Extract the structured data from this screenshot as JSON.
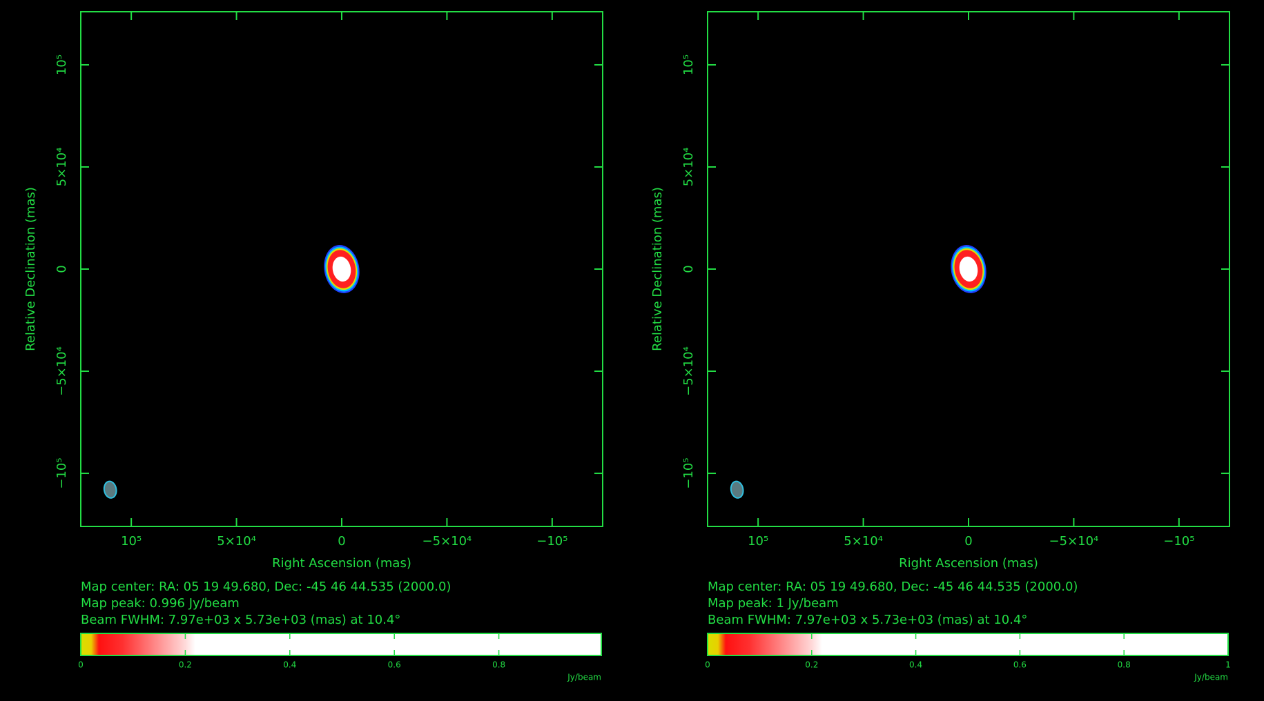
{
  "chart_data": [
    {
      "type": "image",
      "xlabel": "Right Ascension  (mas)",
      "ylabel": "Relative Declination  (mas)",
      "xlim": [
        124000,
        -124000
      ],
      "ylim": [
        -126000,
        126000
      ],
      "xticks": [
        {
          "value": 100000,
          "label": "10⁵"
        },
        {
          "value": 50000,
          "label": "5×10⁴"
        },
        0,
        {
          "value": -50000,
          "label": "−5×10⁴"
        },
        {
          "value": -100000,
          "label": "−10⁵"
        }
      ],
      "yticks": [
        {
          "value": 100000,
          "label": "10⁵"
        },
        {
          "value": 50000,
          "label": "5×10⁴"
        },
        0,
        {
          "value": -50000,
          "label": "−5×10⁴"
        },
        {
          "value": -100000,
          "label": "−10⁵"
        }
      ],
      "info": [
        "Map center:  RA: 05 19 49.680,  Dec: -45 46 44.535 (2000.0)",
        "Map peak: 0.996 Jy/beam",
        "Beam FWHM: 7.97e+03 x 5.73e+03 (mas) at 10.4°"
      ],
      "colorbar": {
        "lim": [
          0,
          0.996
        ],
        "ticks": [
          0,
          0.2,
          0.4,
          0.6,
          0.8
        ],
        "unit": "Jy/beam"
      },
      "source": {
        "x": 0,
        "y": 0,
        "peak": 0.996
      },
      "beam": {
        "x": 110000,
        "y": -108000,
        "major": 7970,
        "minor": 5730,
        "pa": 10.4
      }
    },
    {
      "type": "image",
      "xlabel": "Right Ascension  (mas)",
      "ylabel": "Relative Declination  (mas)",
      "xlim": [
        124000,
        -124000
      ],
      "ylim": [
        -126000,
        126000
      ],
      "xticks": [
        {
          "value": 100000,
          "label": "10⁵"
        },
        {
          "value": 50000,
          "label": "5×10⁴"
        },
        0,
        {
          "value": -50000,
          "label": "−5×10⁴"
        },
        {
          "value": -100000,
          "label": "−10⁵"
        }
      ],
      "yticks": [
        {
          "value": 100000,
          "label": "10⁵"
        },
        {
          "value": 50000,
          "label": "5×10⁴"
        },
        0,
        {
          "value": -50000,
          "label": "−5×10⁴"
        },
        {
          "value": -100000,
          "label": "−10⁵"
        }
      ],
      "info": [
        "Map center:  RA: 05 19 49.680,  Dec: -45 46 44.535 (2000.0)",
        "Map peak: 1 Jy/beam",
        "Beam FWHM: 7.97e+03 x 5.73e+03 (mas) at 10.4°"
      ],
      "colorbar": {
        "lim": [
          0,
          1
        ],
        "ticks": [
          0,
          0.2,
          0.4,
          0.6,
          0.8,
          1
        ],
        "unit": "Jy/beam"
      },
      "source": {
        "x": 0,
        "y": 0,
        "peak": 1
      },
      "beam": {
        "x": 110000,
        "y": -108000,
        "major": 7970,
        "minor": 5730,
        "pa": 10.4
      }
    }
  ]
}
